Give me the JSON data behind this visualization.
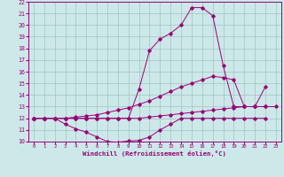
{
  "xlabel": "Windchill (Refroidissement éolien,°C)",
  "xlim": [
    -0.5,
    23.5
  ],
  "ylim": [
    10,
    22
  ],
  "yticks": [
    10,
    11,
    12,
    13,
    14,
    15,
    16,
    17,
    18,
    19,
    20,
    21,
    22
  ],
  "xticks": [
    0,
    1,
    2,
    3,
    4,
    5,
    6,
    7,
    8,
    9,
    10,
    11,
    12,
    13,
    14,
    15,
    16,
    17,
    18,
    19,
    20,
    21,
    22,
    23
  ],
  "bg_color": "#cce8e8",
  "line_color": "#990077",
  "curve1_x": [
    0,
    1,
    2,
    3,
    4,
    5,
    6,
    7,
    8,
    9,
    10,
    11,
    12,
    13,
    14,
    15,
    16,
    17,
    18,
    19,
    20,
    21,
    22
  ],
  "curve1_y": [
    12.0,
    12.0,
    12.0,
    11.5,
    11.1,
    10.8,
    10.4,
    10.0,
    9.95,
    10.05,
    10.1,
    10.4,
    11.0,
    11.5,
    12.0,
    12.0,
    12.0,
    12.0,
    12.0,
    12.0,
    12.0,
    12.0,
    12.0
  ],
  "curve2_x": [
    0,
    1,
    2,
    3,
    4,
    5,
    6,
    7,
    8,
    9,
    10,
    11,
    12,
    13,
    14,
    15,
    16,
    17,
    18,
    19,
    20,
    21,
    22,
    23
  ],
  "curve2_y": [
    12.0,
    12.0,
    12.0,
    12.0,
    12.0,
    12.0,
    12.0,
    12.0,
    12.0,
    12.0,
    12.0,
    12.1,
    12.2,
    12.3,
    12.4,
    12.5,
    12.6,
    12.7,
    12.8,
    12.9,
    13.0,
    13.0,
    13.0,
    13.0
  ],
  "curve3_x": [
    0,
    1,
    2,
    3,
    4,
    5,
    6,
    7,
    8,
    9,
    10,
    11,
    12,
    13,
    14,
    15,
    16,
    17,
    18,
    19,
    20,
    21,
    22
  ],
  "curve3_y": [
    12.0,
    12.0,
    12.0,
    12.0,
    12.1,
    12.2,
    12.3,
    12.5,
    12.7,
    12.9,
    13.2,
    13.5,
    13.9,
    14.3,
    14.7,
    15.0,
    15.3,
    15.6,
    15.5,
    15.3,
    13.0,
    13.0,
    14.7
  ],
  "curve4_x": [
    0,
    1,
    2,
    3,
    4,
    5,
    6,
    7,
    8,
    9,
    10,
    11,
    12,
    13,
    14,
    15,
    16,
    17,
    18,
    19,
    20,
    21,
    22
  ],
  "curve4_y": [
    12.0,
    12.0,
    12.0,
    12.0,
    12.0,
    12.0,
    12.0,
    12.0,
    12.0,
    12.0,
    14.5,
    17.8,
    18.8,
    19.3,
    20.0,
    21.5,
    21.5,
    20.8,
    16.5,
    13.0,
    13.0,
    13.0,
    13.0
  ]
}
